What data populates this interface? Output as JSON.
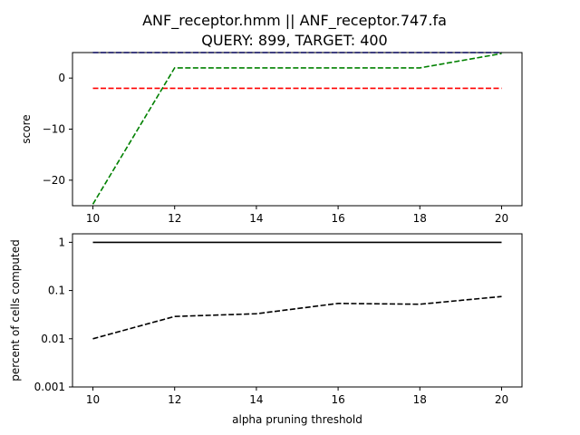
{
  "figure": {
    "title_line1": "ANF_receptor.hmm || ANF_receptor.747.fa",
    "title_line2": "QUERY: 899, TARGET: 400"
  },
  "chart_data": [
    {
      "type": "line",
      "title": "ANF_receptor.hmm || ANF_receptor.747.fa\nQUERY: 899, TARGET: 400",
      "xlabel": "",
      "ylabel": "score",
      "x": [
        10,
        12,
        14,
        16,
        18,
        20
      ],
      "xlim": [
        9.5,
        20.5
      ],
      "ylim": [
        -25,
        5
      ],
      "xticks": [
        "10",
        "12",
        "14",
        "16",
        "18",
        "20"
      ],
      "yticks": [
        {
          "value": 0,
          "label": "0"
        },
        {
          "value": -10,
          "label": "−10"
        },
        {
          "value": -20,
          "label": "−20"
        }
      ],
      "grid": false,
      "series": [
        {
          "color": "#0000ff",
          "style": "dashed",
          "values": [
            5,
            5,
            5,
            5,
            5,
            5
          ]
        },
        {
          "color": "#ff0000",
          "style": "dashed",
          "values": [
            -2,
            -2,
            -2,
            -2,
            -2,
            -2
          ]
        },
        {
          "color": "#008000",
          "style": "dashed",
          "values": [
            -24.7,
            2,
            2,
            2,
            2,
            4.8
          ]
        }
      ]
    },
    {
      "type": "line",
      "xlabel": "alpha pruning threshold",
      "ylabel": "percent of cells computed",
      "x": [
        10,
        12,
        14,
        16,
        18,
        20
      ],
      "xlim": [
        9.5,
        20.5
      ],
      "ylim": [
        0.001,
        1.5
      ],
      "yscale": "log",
      "xticks": [
        "10",
        "12",
        "14",
        "16",
        "18",
        "20"
      ],
      "yticks": [
        {
          "value": 1,
          "label": "1"
        },
        {
          "value": 0.1,
          "label": "0.1"
        },
        {
          "value": 0.01,
          "label": "0.01"
        },
        {
          "value": 0.001,
          "label": "0.001"
        }
      ],
      "grid": false,
      "series": [
        {
          "color": "#000000",
          "style": "solid",
          "values": [
            1,
            1,
            1,
            1,
            1,
            1
          ]
        },
        {
          "color": "#000000",
          "style": "dashed",
          "values": [
            0.01,
            0.029,
            0.033,
            0.054,
            0.052,
            0.075
          ]
        }
      ]
    }
  ]
}
